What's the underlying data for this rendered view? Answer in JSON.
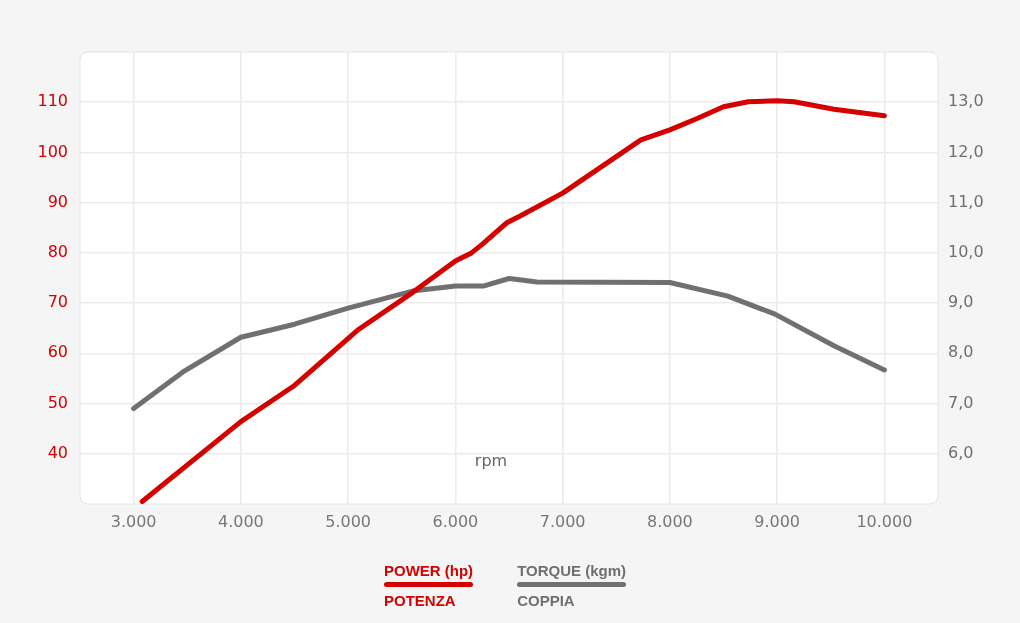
{
  "chart_data": {
    "type": "line",
    "xlabel": "rpm",
    "xlim": [
      2500,
      10500
    ],
    "xticks": [
      {
        "value": 3000,
        "label": "3.000"
      },
      {
        "value": 4000,
        "label": "4.000"
      },
      {
        "value": 5000,
        "label": "5.000"
      },
      {
        "value": 6000,
        "label": "6.000"
      },
      {
        "value": 7000,
        "label": "7.000"
      },
      {
        "value": 8000,
        "label": "8.000"
      },
      {
        "value": 9000,
        "label": "9.000"
      },
      {
        "value": 10000,
        "label": "10.000"
      }
    ],
    "ylim": [
      30,
      120
    ],
    "yticks": [
      40,
      50,
      60,
      70,
      80,
      90,
      100,
      110
    ],
    "y2lim": [
      5,
      14
    ],
    "y2ticks": [
      {
        "value": 6,
        "label": "6,0"
      },
      {
        "value": 7,
        "label": "7,0"
      },
      {
        "value": 8,
        "label": "8,0"
      },
      {
        "value": 9,
        "label": "9,0"
      },
      {
        "value": 10,
        "label": "10,0"
      },
      {
        "value": 11,
        "label": "11,0"
      },
      {
        "value": 12,
        "label": "12,0"
      },
      {
        "value": 13,
        "label": "13,0"
      }
    ],
    "grid": true,
    "legend": "bottom",
    "series": [
      {
        "name": "POWER (hp)\nPOTENZA",
        "color": "#d50000",
        "x": [
          3080,
          4000,
          4500,
          5100,
          5600,
          6000,
          6150,
          6250,
          6480,
          6600,
          7000,
          7730,
          8000,
          8260,
          8500,
          8730,
          9000,
          9160,
          9530,
          10000
        ],
        "values": [
          30.5,
          46.4,
          53.6,
          64.8,
          72.1,
          78.4,
          80.0,
          81.7,
          86.0,
          87.3,
          91.9,
          102.5,
          104.5,
          106.8,
          109.1,
          110.1,
          110.3,
          110.1,
          108.6,
          107.3
        ]
      },
      {
        "name": "TORQUE (kgm)\nCOPPIA",
        "color": "#707070",
        "axis": "y2",
        "x": [
          3000,
          3460,
          4000,
          4500,
          5000,
          5600,
          6000,
          6260,
          6500,
          6580,
          6760,
          8000,
          8540,
          8980,
          9530,
          10000
        ],
        "values": [
          6.9,
          7.63,
          8.32,
          8.58,
          8.9,
          9.24,
          9.34,
          9.34,
          9.49,
          9.47,
          9.42,
          9.41,
          9.14,
          8.78,
          8.15,
          7.67
        ]
      }
    ]
  }
}
